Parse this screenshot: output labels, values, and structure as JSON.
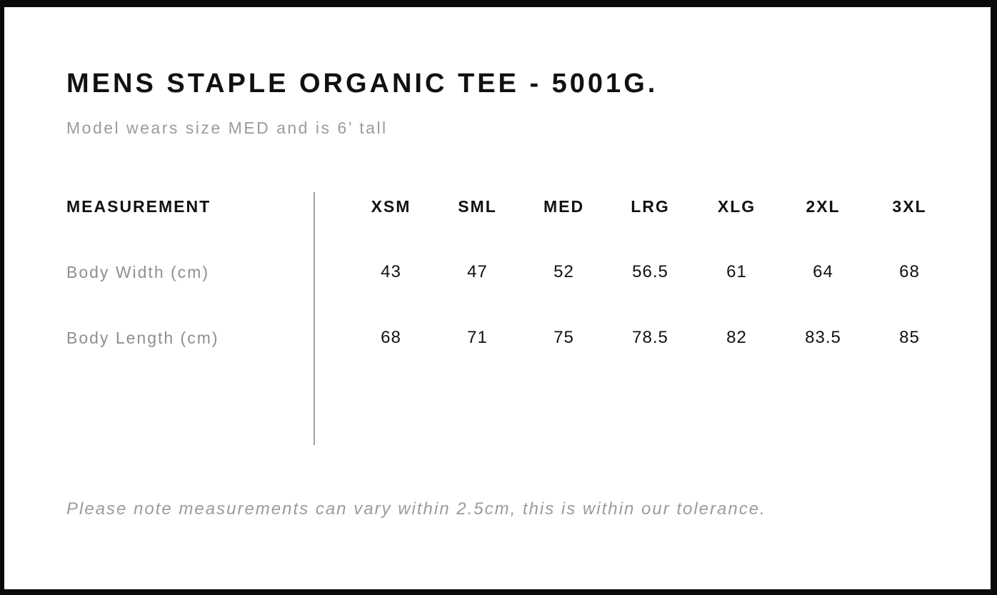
{
  "page": {
    "title": "MENS STAPLE ORGANIC TEE - 5001G.",
    "subtitle": "Model wears size MED and is 6’ tall",
    "footnote": "Please note measurements can vary within 2.5cm, this is within our tolerance."
  },
  "size_chart": {
    "measurement_header": "MEASUREMENT",
    "size_headers": [
      "XSM",
      "SML",
      "MED",
      "LRG",
      "XLG",
      "2XL",
      "3XL"
    ],
    "rows": [
      {
        "label": "Body Width (cm)",
        "values": [
          "43",
          "47",
          "52",
          "56.5",
          "61",
          "64",
          "68"
        ]
      },
      {
        "label": "Body Length (cm)",
        "values": [
          "68",
          "71",
          "75",
          "78.5",
          "82",
          "83.5",
          "85"
        ]
      }
    ]
  },
  "chart_data": {
    "type": "table",
    "title": "MENS STAPLE ORGANIC TEE - 5001G.",
    "columns": [
      "MEASUREMENT",
      "XSM",
      "SML",
      "MED",
      "LRG",
      "XLG",
      "2XL",
      "3XL"
    ],
    "series": [
      {
        "name": "Body Width (cm)",
        "values": [
          43,
          47,
          52,
          56.5,
          61,
          64,
          68
        ]
      },
      {
        "name": "Body Length (cm)",
        "values": [
          68,
          71,
          75,
          78.5,
          82,
          83.5,
          85
        ]
      }
    ]
  },
  "colors": {
    "frame": "#0a0a0a",
    "background": "#ffffff",
    "text_primary": "#111111",
    "text_muted": "#9b9b9b",
    "divider": "#a3a3a3"
  }
}
